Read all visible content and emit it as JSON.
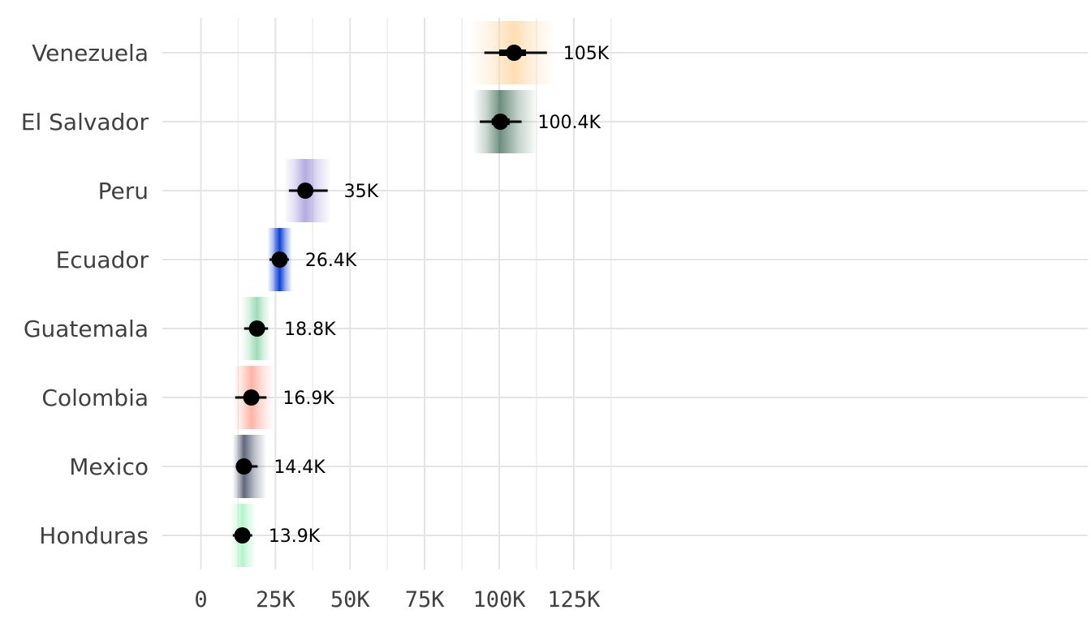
{
  "chart_data": {
    "type": "pointrange",
    "title": "",
    "xlabel": "",
    "ylabel": "",
    "xlim": [
      -12500,
      147500
    ],
    "x_ticks": [
      0,
      25000,
      50000,
      75000,
      100000,
      125000
    ],
    "x_tick_labels": [
      "0",
      "25K",
      "50K",
      "75K",
      "100K",
      "125K"
    ],
    "x_minor_ticks": [
      12500,
      37500,
      62500,
      87500,
      112500,
      137500
    ],
    "grid": true,
    "legend": "none",
    "categories": [
      "Venezuela",
      "El Salvador",
      "Peru",
      "Ecuador",
      "Guatemala",
      "Colombia",
      "Mexico",
      "Honduras"
    ],
    "series": [
      {
        "values": [
          105000,
          100400,
          35000,
          26400,
          18800,
          16900,
          14400,
          13900
        ],
        "value_labels": [
          "105K",
          "100.4K",
          "35K",
          "26.4K",
          "18.8K",
          "16.9K",
          "14.4K",
          "13.9K"
        ],
        "interval_66": [
          [
            100000,
            109000
          ],
          [
            97500,
            103500
          ],
          [
            32500,
            37500
          ],
          [
            24900,
            27900
          ],
          [
            17300,
            20300
          ],
          [
            15000,
            18800
          ],
          [
            13100,
            15700
          ],
          [
            12900,
            15000
          ]
        ],
        "interval_95": [
          [
            95000,
            116000
          ],
          [
            93500,
            107500
          ],
          [
            29500,
            42500
          ],
          [
            23000,
            29500
          ],
          [
            14500,
            22500
          ],
          [
            11500,
            22000
          ],
          [
            11700,
            19000
          ],
          [
            10700,
            17200
          ]
        ],
        "density_range": [
          [
            90000,
            118500
          ],
          [
            91500,
            112500
          ],
          [
            28000,
            43500
          ],
          [
            22400,
            30500
          ],
          [
            13600,
            23300
          ],
          [
            11000,
            24300
          ],
          [
            10700,
            21800
          ],
          [
            9800,
            18500
          ]
        ],
        "colors": [
          "#fdd39b",
          "#3e6b55",
          "#9b8fd6",
          "#0b3fd8",
          "#7ccf9f",
          "#ff9a88",
          "#2b3550",
          "#9df0bd"
        ]
      }
    ]
  }
}
